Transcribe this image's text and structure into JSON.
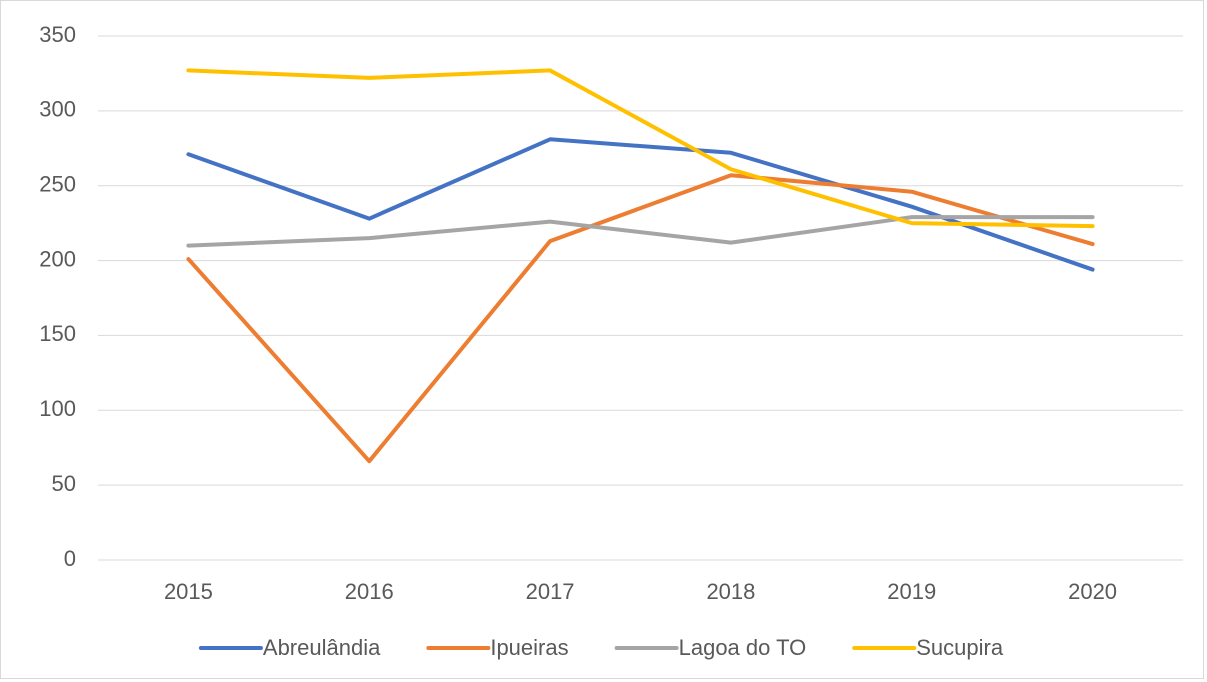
{
  "chart_data": {
    "type": "line",
    "categories": [
      "2015",
      "2016",
      "2017",
      "2018",
      "2019",
      "2020"
    ],
    "series": [
      {
        "name": "Abreulândia",
        "color": "#4472c4",
        "values": [
          271,
          228,
          281,
          272,
          236,
          194
        ]
      },
      {
        "name": "Ipueiras",
        "color": "#ed7d31",
        "values": [
          201,
          66,
          213,
          257,
          246,
          211
        ]
      },
      {
        "name": "Lagoa do TO",
        "color": "#a5a5a5",
        "values": [
          210,
          215,
          226,
          212,
          229,
          229
        ]
      },
      {
        "name": "Sucupira",
        "color": "#ffc000",
        "values": [
          327,
          322,
          327,
          261,
          225,
          223
        ]
      }
    ],
    "ylim": [
      0,
      350
    ],
    "yticks": [
      0,
      50,
      100,
      150,
      200,
      250,
      300,
      350
    ],
    "grid": true,
    "legend": "bottom"
  }
}
